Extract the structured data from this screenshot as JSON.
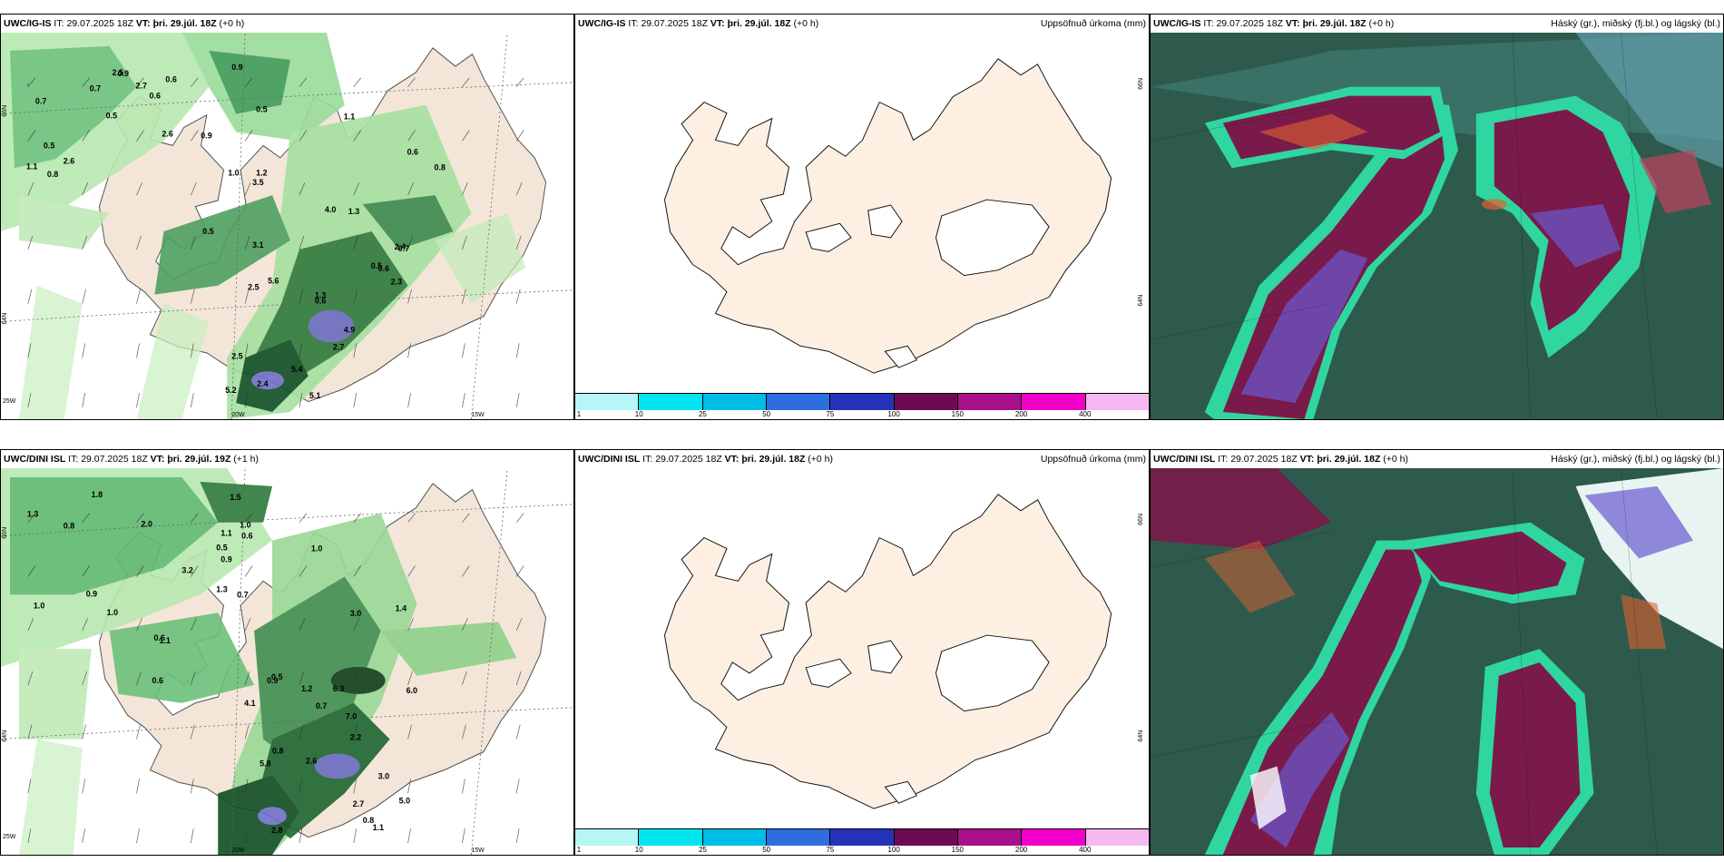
{
  "panels": {
    "top_left": {
      "model": "UWC/IG-IS",
      "it_label": "IT:",
      "it": "29.07.2025 18Z",
      "vt_label": "VT:",
      "vt": "þri. 29.júl. 18Z",
      "lead": "(+0 h)",
      "right": ""
    },
    "top_mid": {
      "model": "UWC/IG-IS",
      "it_label": "IT:",
      "it": "29.07.2025 18Z",
      "vt_label": "VT:",
      "vt": "þri. 29.júl. 18Z",
      "lead": "(+0 h)",
      "right": "Uppsöfnuð úrkoma (mm)"
    },
    "top_right": {
      "model": "UWC/IG-IS",
      "it_label": "IT:",
      "it": "29.07.2025 18Z",
      "vt_label": "VT:",
      "vt": "þri. 29.júl. 18Z",
      "lead": "(+0 h)",
      "right": "Háský (gr.), miðský (fj.bl.) og lágský (bl.)"
    },
    "bot_left": {
      "model": "UWC/DINI ISL",
      "it_label": "IT:",
      "it": "29.07.2025 18Z",
      "vt_label": "VT:",
      "vt": "þri. 29.júl. 19Z",
      "lead": "(+1 h)",
      "right": ""
    },
    "bot_mid": {
      "model": "UWC/DINI ISL",
      "it_label": "IT:",
      "it": "29.07.2025 18Z",
      "vt_label": "VT:",
      "vt": "þri. 29.júl. 18Z",
      "lead": "(+0 h)",
      "right": "Uppsöfnuð úrkoma (mm)"
    },
    "bot_right": {
      "model": "UWC/DINI ISL",
      "it_label": "IT:",
      "it": "29.07.2025 18Z",
      "vt_label": "VT:",
      "vt": "þri. 29.júl. 18Z",
      "lead": "(+0 h)",
      "right": "Háský (gr.), miðský (fj.bl.) og lágský (bl.)"
    }
  },
  "colorbar": {
    "ticks": [
      "1",
      "10",
      "25",
      "50",
      "75",
      "100",
      "150",
      "200",
      "400"
    ],
    "colors": [
      "#b8f5f5",
      "#00e5f0",
      "#00bde8",
      "#2d6de0",
      "#2532b8",
      "#6e0a52",
      "#a8108a",
      "#f000c8",
      "#f5b8f0"
    ]
  },
  "axis_labels": {
    "lat_66": "66N",
    "lat_64": "64N",
    "lon_25": "25W",
    "lon_20": "20W",
    "lon_15": "15W"
  },
  "precip_labels_top": [
    "1.0",
    "0.7",
    "0.9",
    "0.5",
    "0.6",
    "0.8",
    "2.5",
    "2.7",
    "0.5",
    "0.7",
    "1.1",
    "2.6",
    "0.9",
    "0.6",
    "1.3",
    "2.6",
    "0.5",
    "0.8",
    "4.0",
    "0.6",
    "3.5",
    "3.1",
    "1.2",
    "0.9",
    "1.1",
    "0.5",
    "0.6",
    "0.7",
    "4.9",
    "5.1",
    "5.6",
    "2.5",
    "2.7",
    "2.4",
    "2.3",
    "1.3",
    "5.2",
    "5.4",
    "0.6",
    "2.5",
    "0.5",
    "2.4"
  ],
  "precip_labels_bot": [
    "1.3",
    "1.0",
    "0.7",
    "2.0",
    "1.0",
    "1.8",
    "1.1",
    "0.9",
    "1.5",
    "0.8",
    "0.6",
    "1.3",
    "0.5",
    "1.0",
    "0.6",
    "3.2",
    "6.0",
    "0.9",
    "0.5",
    "1.4",
    "0.6",
    "1.1",
    "0.7",
    "3.0",
    "4.1",
    "0.9",
    "1.0",
    "6.3",
    "7.0",
    "5.0",
    "5.8",
    "2.7",
    "2.8",
    "2.6",
    "3.0",
    "0.8",
    "2.2",
    "1.2",
    "1.1",
    "0.8"
  ]
}
